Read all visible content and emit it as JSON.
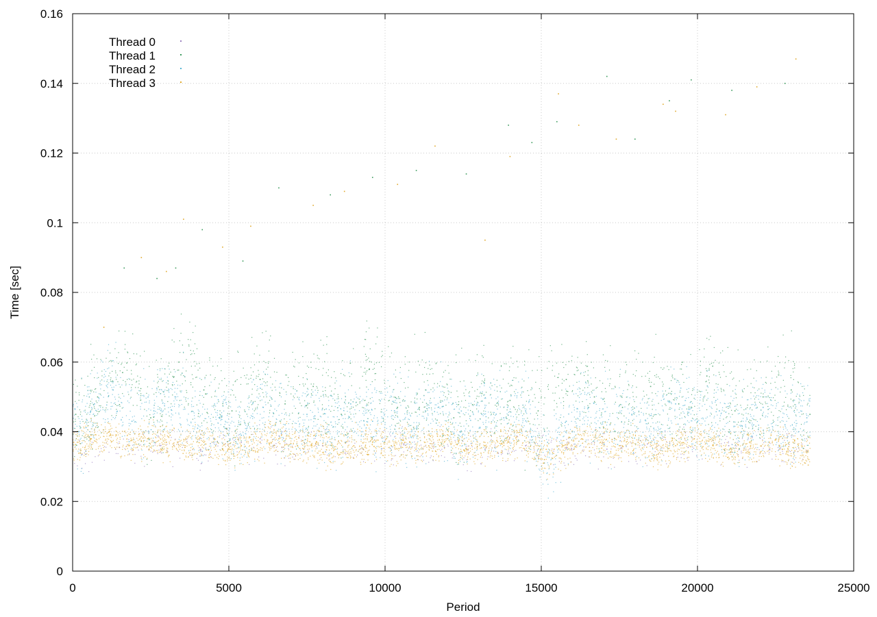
{
  "chart_data": {
    "type": "scatter",
    "title": "",
    "xlabel": "Period",
    "ylabel": "Time [sec]",
    "xlim": [
      0,
      25000
    ],
    "ylim": [
      0,
      0.16
    ],
    "x_ticks": [
      0,
      5000,
      10000,
      15000,
      20000,
      25000
    ],
    "y_ticks": [
      0,
      0.02,
      0.04,
      0.06,
      0.08,
      0.1,
      0.12,
      0.14,
      0.16
    ],
    "x_tick_labels": [
      "0",
      "5000",
      "10000",
      "15000",
      "20000",
      "25000"
    ],
    "y_tick_labels": [
      "0",
      "0.02",
      "0.04",
      "0.06",
      "0.08",
      "0.1",
      "0.12",
      "0.14",
      "0.16"
    ],
    "grid": true,
    "legend_position": "top-left",
    "series": [
      {
        "name": "Thread 0",
        "color": "#9a7fbf",
        "points": [
          [
            300,
            0.0335
          ],
          [
            1500,
            0.0355
          ],
          [
            2800,
            0.036
          ],
          [
            4100,
            0.0345
          ],
          [
            5400,
            0.037
          ],
          [
            6700,
            0.0355
          ],
          [
            8000,
            0.036
          ],
          [
            9300,
            0.035
          ],
          [
            10600,
            0.0365
          ],
          [
            11900,
            0.0355
          ],
          [
            13200,
            0.035
          ],
          [
            14500,
            0.036
          ],
          [
            15800,
            0.0355
          ],
          [
            17100,
            0.035
          ],
          [
            18400,
            0.0365
          ],
          [
            19700,
            0.0355
          ],
          [
            21000,
            0.036
          ],
          [
            22300,
            0.035
          ],
          [
            23500,
            0.0345
          ]
        ]
      },
      {
        "name": "Thread 1",
        "color": "#3a9a5c",
        "points": [
          [
            100,
            0.045
          ],
          [
            800,
            0.05
          ],
          [
            1600,
            0.057
          ],
          [
            2500,
            0.044
          ],
          [
            3400,
            0.06
          ],
          [
            4200,
            0.052
          ],
          [
            5100,
            0.046
          ],
          [
            6000,
            0.055
          ],
          [
            6800,
            0.048
          ],
          [
            7700,
            0.053
          ],
          [
            8600,
            0.045
          ],
          [
            9500,
            0.058
          ],
          [
            10400,
            0.047
          ],
          [
            11300,
            0.052
          ],
          [
            12200,
            0.044
          ],
          [
            13100,
            0.051
          ],
          [
            14000,
            0.049
          ],
          [
            14900,
            0.046
          ],
          [
            15800,
            0.055
          ],
          [
            16700,
            0.05
          ],
          [
            17600,
            0.047
          ],
          [
            18500,
            0.053
          ],
          [
            19400,
            0.048
          ],
          [
            20300,
            0.056
          ],
          [
            21200,
            0.046
          ],
          [
            22100,
            0.05
          ],
          [
            23000,
            0.052
          ],
          [
            23600,
            0.045
          ]
        ]
      },
      {
        "name": "Thread 2",
        "color": "#56b4d3",
        "points": [
          [
            200,
            0.04
          ],
          [
            700,
            0.048
          ],
          [
            1300,
            0.052
          ],
          [
            1900,
            0.043
          ],
          [
            2600,
            0.046
          ],
          [
            3300,
            0.05
          ],
          [
            4000,
            0.041
          ],
          [
            4700,
            0.044
          ],
          [
            5400,
            0.039
          ],
          [
            6100,
            0.047
          ],
          [
            6800,
            0.042
          ],
          [
            7500,
            0.045
          ],
          [
            8200,
            0.04
          ],
          [
            8900,
            0.048
          ],
          [
            9600,
            0.043
          ],
          [
            10300,
            0.046
          ],
          [
            11000,
            0.041
          ],
          [
            11700,
            0.047
          ],
          [
            12400,
            0.04
          ],
          [
            13100,
            0.045
          ],
          [
            13800,
            0.044
          ],
          [
            14500,
            0.046
          ],
          [
            15100,
            0.031
          ],
          [
            15800,
            0.043
          ],
          [
            16500,
            0.047
          ],
          [
            17200,
            0.042
          ],
          [
            17900,
            0.045
          ],
          [
            18600,
            0.041
          ],
          [
            19300,
            0.048
          ],
          [
            20000,
            0.043
          ],
          [
            20700,
            0.046
          ],
          [
            21400,
            0.04
          ],
          [
            22100,
            0.047
          ],
          [
            22800,
            0.042
          ],
          [
            23500,
            0.044
          ]
        ]
      },
      {
        "name": "Thread 3",
        "color": "#e0a92c",
        "points": [
          [
            150,
            0.037
          ],
          [
            600,
            0.038
          ],
          [
            1200,
            0.039
          ],
          [
            1800,
            0.036
          ],
          [
            2400,
            0.038
          ],
          [
            3000,
            0.037
          ],
          [
            3600,
            0.036
          ],
          [
            4200,
            0.037
          ],
          [
            4800,
            0.035
          ],
          [
            5400,
            0.036
          ],
          [
            6000,
            0.037
          ],
          [
            6600,
            0.038
          ],
          [
            7200,
            0.036
          ],
          [
            7800,
            0.037
          ],
          [
            8400,
            0.035
          ],
          [
            9000,
            0.036
          ],
          [
            9600,
            0.037
          ],
          [
            10200,
            0.036
          ],
          [
            10800,
            0.037
          ],
          [
            11400,
            0.036
          ],
          [
            12000,
            0.038
          ],
          [
            12600,
            0.035
          ],
          [
            13200,
            0.036
          ],
          [
            13800,
            0.037
          ],
          [
            14400,
            0.039
          ],
          [
            15100,
            0.032
          ],
          [
            15700,
            0.036
          ],
          [
            16300,
            0.038
          ],
          [
            16900,
            0.037
          ],
          [
            17500,
            0.036
          ],
          [
            18100,
            0.037
          ],
          [
            18700,
            0.035
          ],
          [
            19300,
            0.036
          ],
          [
            19900,
            0.038
          ],
          [
            20500,
            0.036
          ],
          [
            21100,
            0.035
          ],
          [
            21700,
            0.036
          ],
          [
            22300,
            0.037
          ],
          [
            22900,
            0.035
          ],
          [
            23500,
            0.034
          ]
        ]
      }
    ],
    "outliers": [
      [
        1000,
        0.07
      ],
      [
        1650,
        0.087
      ],
      [
        2200,
        0.09
      ],
      [
        2700,
        0.084
      ],
      [
        3000,
        0.086
      ],
      [
        3300,
        0.087
      ],
      [
        3550,
        0.101
      ],
      [
        4150,
        0.098
      ],
      [
        4800,
        0.093
      ],
      [
        5450,
        0.089
      ],
      [
        5700,
        0.099
      ],
      [
        6600,
        0.11
      ],
      [
        7700,
        0.105
      ],
      [
        8250,
        0.108
      ],
      [
        8700,
        0.109
      ],
      [
        9600,
        0.113
      ],
      [
        10400,
        0.111
      ],
      [
        11000,
        0.115
      ],
      [
        11600,
        0.122
      ],
      [
        12600,
        0.114
      ],
      [
        13200,
        0.095
      ],
      [
        13950,
        0.128
      ],
      [
        14000,
        0.119
      ],
      [
        14700,
        0.123
      ],
      [
        15550,
        0.137
      ],
      [
        15500,
        0.129
      ],
      [
        16200,
        0.128
      ],
      [
        17100,
        0.142
      ],
      [
        17400,
        0.124
      ],
      [
        18000,
        0.124
      ],
      [
        18900,
        0.134
      ],
      [
        19100,
        0.135
      ],
      [
        19300,
        0.132
      ],
      [
        19800,
        0.141
      ],
      [
        20900,
        0.131
      ],
      [
        21100,
        0.138
      ],
      [
        21900,
        0.139
      ],
      [
        22800,
        0.14
      ],
      [
        23150,
        0.147
      ]
    ]
  }
}
